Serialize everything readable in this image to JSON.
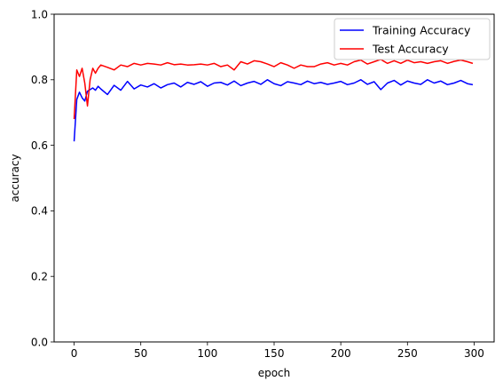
{
  "chart_data": {
    "type": "line",
    "title": "",
    "xlabel": "epoch",
    "ylabel": "accuracy",
    "xlim": [
      -15,
      315
    ],
    "ylim": [
      0.0,
      1.0
    ],
    "x_ticks": [
      0,
      50,
      100,
      150,
      200,
      250,
      300
    ],
    "y_ticks": [
      0.0,
      0.2,
      0.4,
      0.6,
      0.8,
      1.0
    ],
    "x_tick_labels": [
      "0",
      "50",
      "100",
      "150",
      "200",
      "250",
      "300"
    ],
    "y_tick_labels": [
      "0.0",
      "0.2",
      "0.4",
      "0.6",
      "0.8",
      "1.0"
    ],
    "grid": false,
    "legend_position": "top-right",
    "x": [
      0,
      2,
      4,
      6,
      8,
      10,
      12,
      14,
      16,
      18,
      20,
      25,
      30,
      35,
      40,
      45,
      50,
      55,
      60,
      65,
      70,
      75,
      80,
      85,
      90,
      95,
      100,
      105,
      110,
      115,
      120,
      125,
      130,
      135,
      140,
      145,
      150,
      155,
      160,
      165,
      170,
      175,
      180,
      185,
      190,
      195,
      200,
      205,
      210,
      215,
      220,
      225,
      230,
      235,
      240,
      245,
      250,
      255,
      260,
      265,
      270,
      275,
      280,
      285,
      290,
      295,
      299
    ],
    "series": [
      {
        "name": "Training Accuracy",
        "color": "#0000ff",
        "values": [
          0.612,
          0.74,
          0.762,
          0.745,
          0.735,
          0.765,
          0.77,
          0.775,
          0.768,
          0.78,
          0.772,
          0.755,
          0.783,
          0.768,
          0.795,
          0.772,
          0.784,
          0.778,
          0.788,
          0.775,
          0.785,
          0.79,
          0.778,
          0.792,
          0.786,
          0.794,
          0.78,
          0.79,
          0.792,
          0.784,
          0.796,
          0.782,
          0.79,
          0.795,
          0.786,
          0.8,
          0.788,
          0.782,
          0.794,
          0.79,
          0.785,
          0.796,
          0.788,
          0.792,
          0.786,
          0.79,
          0.795,
          0.785,
          0.79,
          0.8,
          0.786,
          0.794,
          0.77,
          0.79,
          0.798,
          0.784,
          0.796,
          0.79,
          0.786,
          0.8,
          0.79,
          0.796,
          0.785,
          0.79,
          0.798,
          0.788,
          0.785
        ]
      },
      {
        "name": "Test Accuracy",
        "color": "#ff0000",
        "values": [
          0.68,
          0.83,
          0.81,
          0.835,
          0.79,
          0.72,
          0.8,
          0.835,
          0.82,
          0.835,
          0.845,
          0.838,
          0.83,
          0.845,
          0.84,
          0.85,
          0.845,
          0.85,
          0.848,
          0.845,
          0.852,
          0.846,
          0.848,
          0.845,
          0.846,
          0.848,
          0.845,
          0.85,
          0.84,
          0.845,
          0.83,
          0.855,
          0.848,
          0.858,
          0.855,
          0.848,
          0.84,
          0.852,
          0.845,
          0.835,
          0.845,
          0.84,
          0.84,
          0.848,
          0.852,
          0.845,
          0.85,
          0.845,
          0.855,
          0.86,
          0.848,
          0.855,
          0.862,
          0.85,
          0.858,
          0.85,
          0.86,
          0.852,
          0.855,
          0.85,
          0.855,
          0.858,
          0.85,
          0.856,
          0.86,
          0.855,
          0.85
        ]
      }
    ]
  }
}
